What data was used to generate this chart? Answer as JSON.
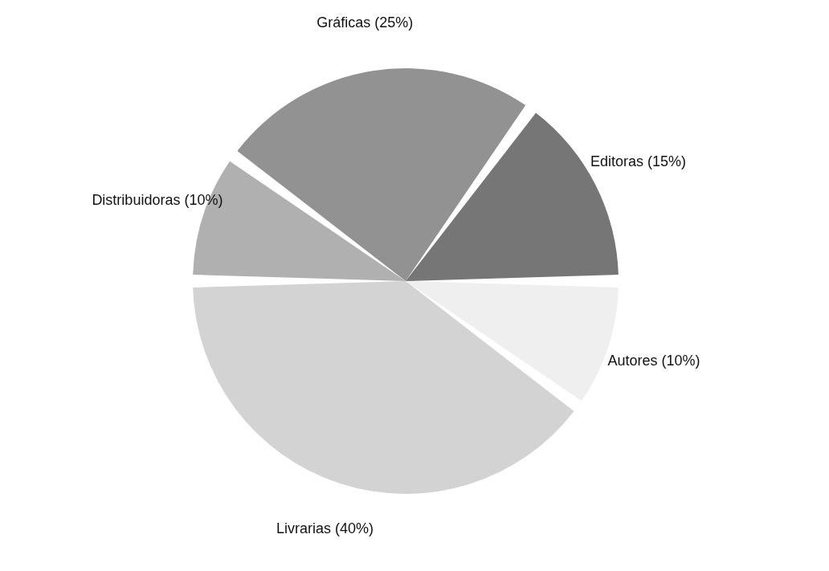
{
  "chart_data": {
    "type": "pie",
    "categories": [
      "Editoras",
      "Gráficas",
      "Distribuidoras",
      "Livrarias",
      "Autores"
    ],
    "values": [
      15,
      25,
      10,
      40,
      10
    ],
    "value_labels": [
      "(15%)",
      "(25%)",
      "(10%)",
      "(40%)",
      "(10%)"
    ],
    "colors": [
      "#767676",
      "#929292",
      "#b0b0b0",
      "#d3d3d3",
      "#efefef"
    ],
    "legend": false
  }
}
